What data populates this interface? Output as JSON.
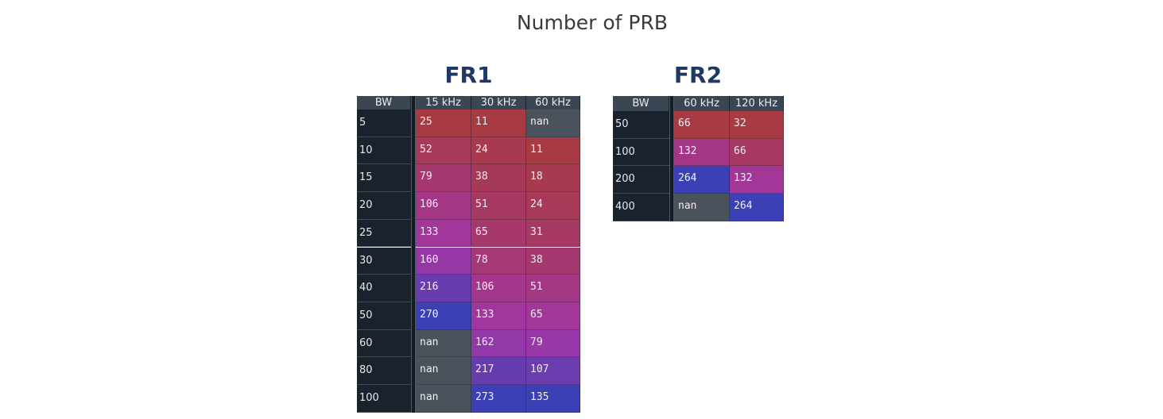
{
  "title": "Number of PRB",
  "chart_data": [
    {
      "type": "heatmap",
      "title": "FR1",
      "index_label": "BW",
      "columns": [
        "15 kHz",
        "30 kHz",
        "60 kHz"
      ],
      "rows": [
        "5",
        "10",
        "15",
        "20",
        "25",
        "30",
        "40",
        "50",
        "60",
        "80",
        "100"
      ],
      "values": [
        [
          "25",
          "11",
          "nan"
        ],
        [
          "52",
          "24",
          "11"
        ],
        [
          "79",
          "38",
          "18"
        ],
        [
          "106",
          "51",
          "24"
        ],
        [
          "133",
          "65",
          "31"
        ],
        [
          "160",
          "78",
          "38"
        ],
        [
          "216",
          "106",
          "51"
        ],
        [
          "270",
          "133",
          "65"
        ],
        [
          "nan",
          "162",
          "79"
        ],
        [
          "nan",
          "217",
          "107"
        ],
        [
          "nan",
          "273",
          "135"
        ]
      ]
    },
    {
      "type": "heatmap",
      "title": "FR2",
      "index_label": "BW",
      "columns": [
        "60 kHz",
        "120 kHz"
      ],
      "rows": [
        "50",
        "100",
        "200",
        "400"
      ],
      "values": [
        [
          "66",
          "32"
        ],
        [
          "132",
          "66"
        ],
        [
          "264",
          "132"
        ],
        [
          "nan",
          "264"
        ]
      ]
    }
  ],
  "colors": {
    "low": "#a83a44",
    "mid": "#a236a6",
    "high": "#3b41b4",
    "nan": "#4a525b",
    "header_bg": "#3b4655",
    "index_bg": "#1a232d",
    "title_color": "#1f3864"
  }
}
